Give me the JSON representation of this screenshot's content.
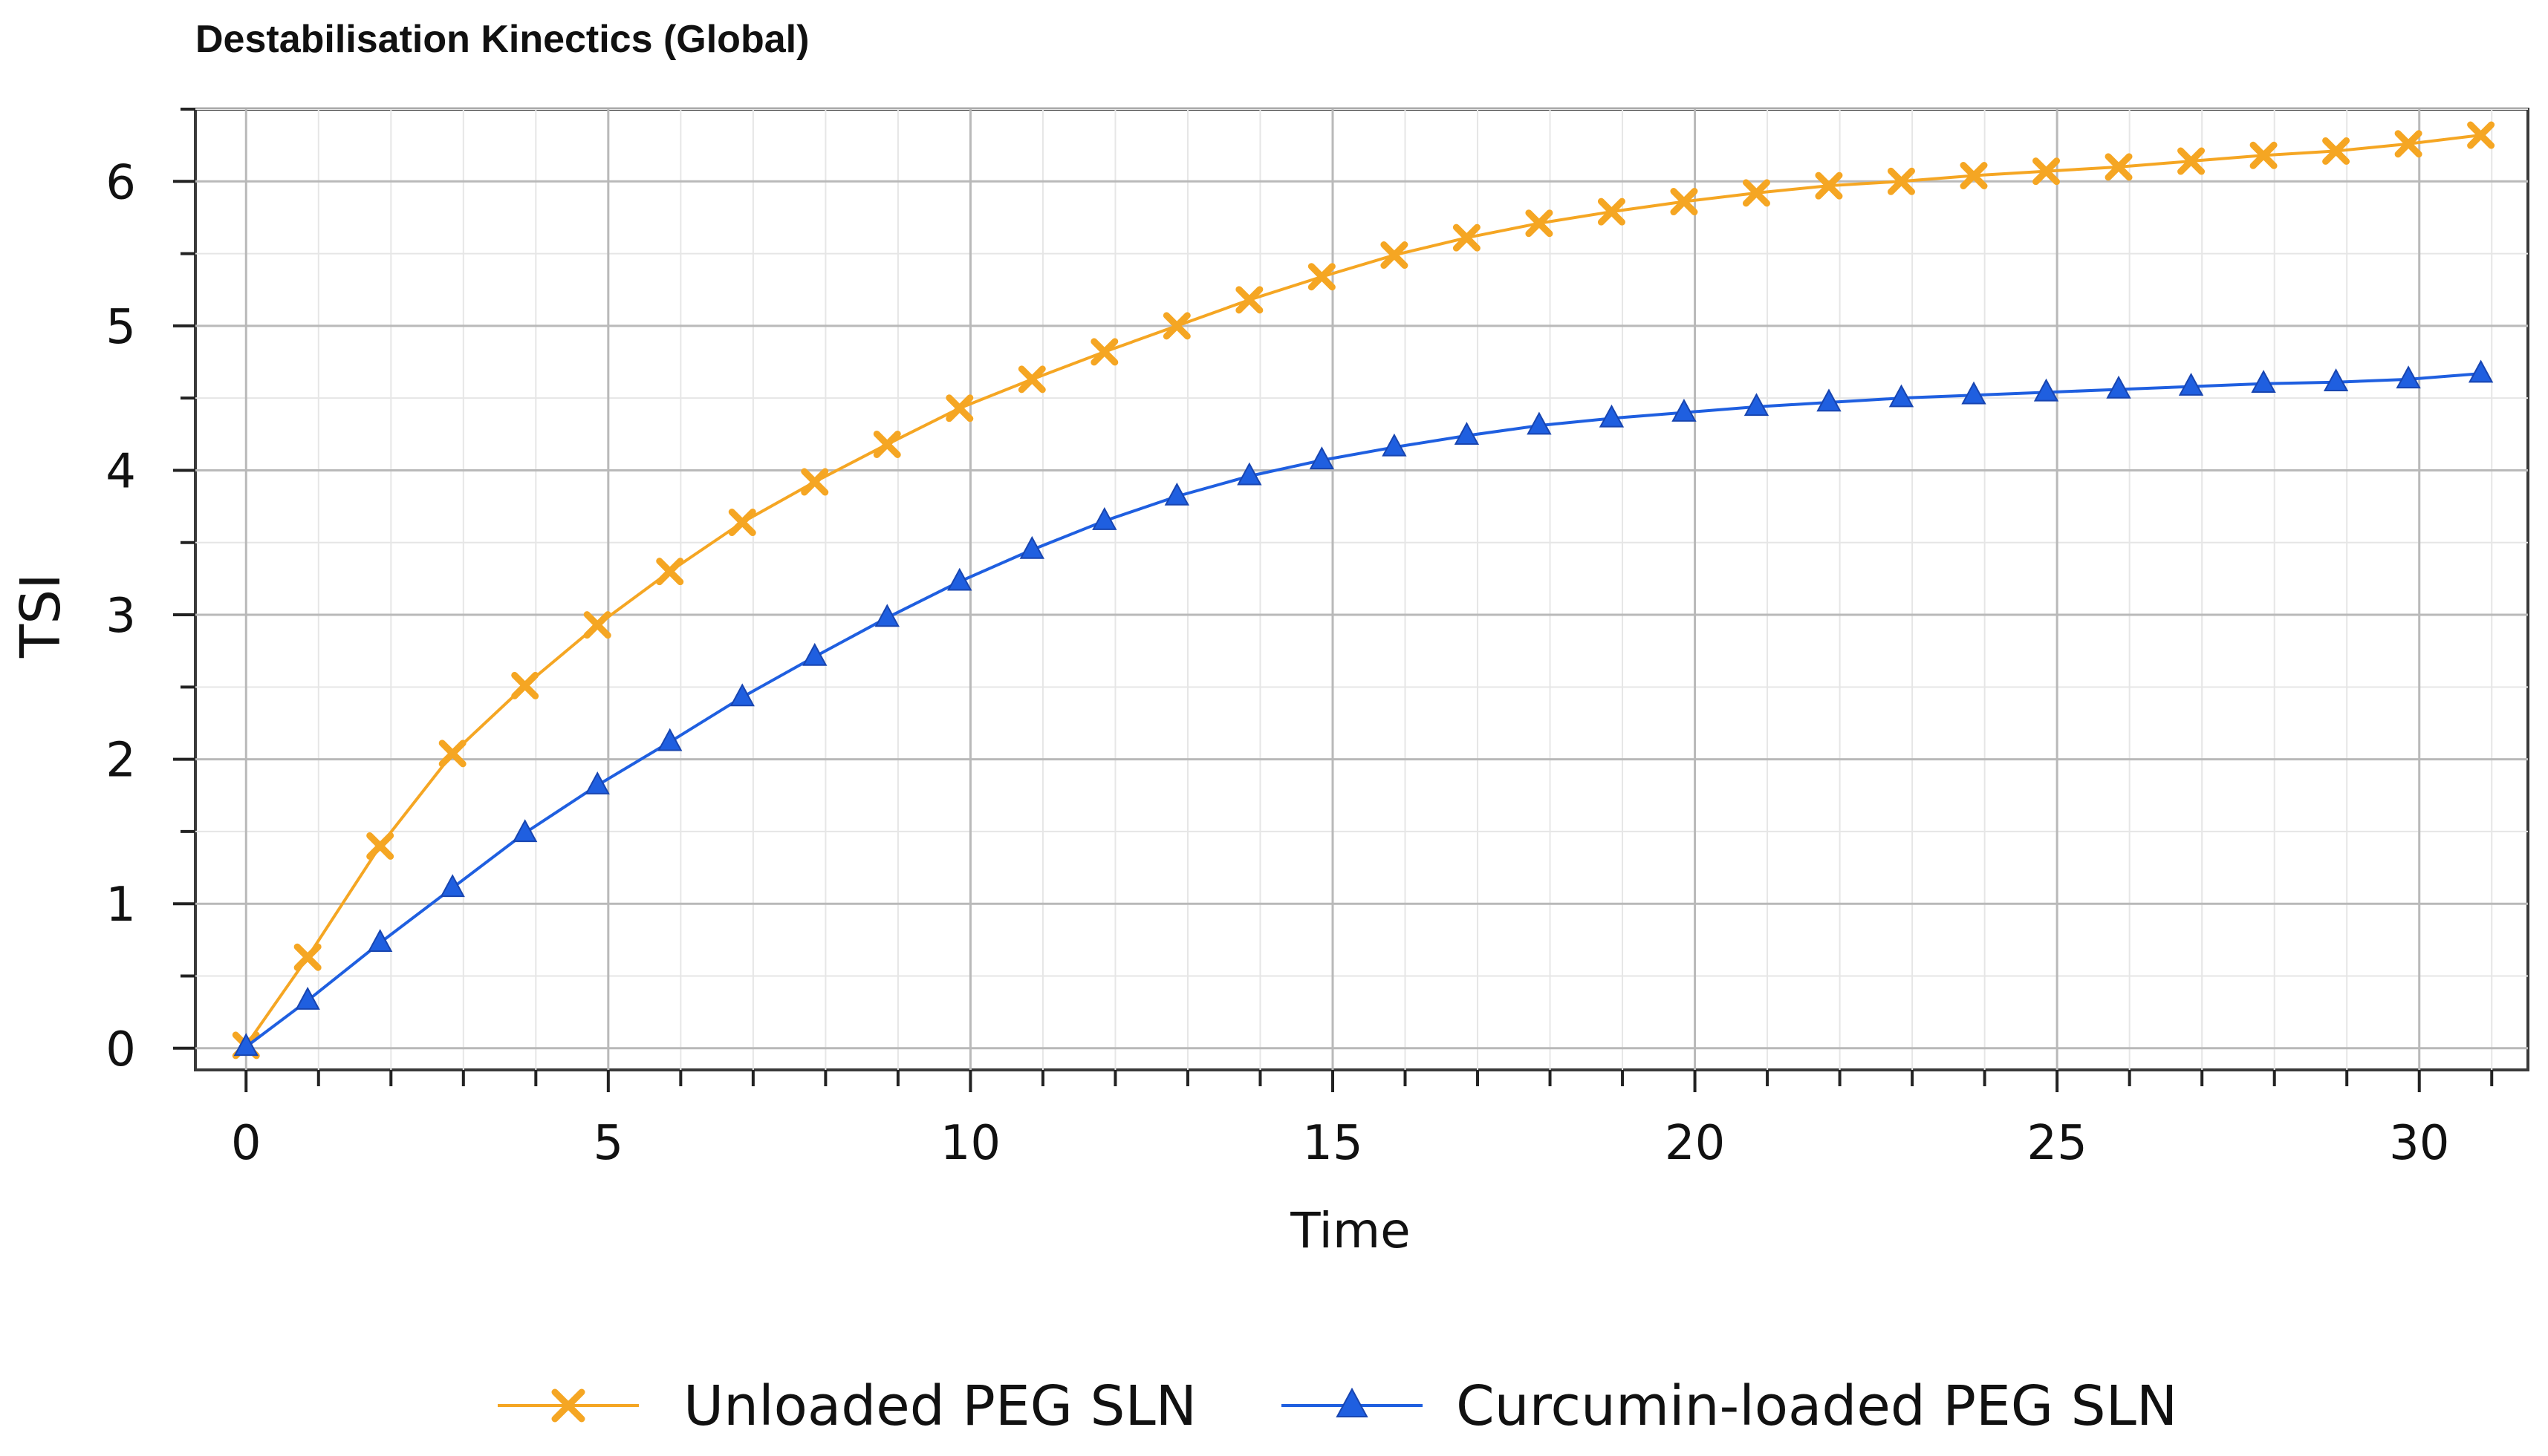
{
  "chart_data": {
    "type": "line",
    "title": "Destabilisation Kinectics (Global)",
    "xlabel": "Time",
    "ylabel": "TSI",
    "xlim": [
      -0.7,
      31.5
    ],
    "ylim": [
      -0.15,
      6.5
    ],
    "x_ticks": [
      0,
      5,
      10,
      15,
      20,
      25,
      30
    ],
    "y_ticks": [
      0,
      1,
      2,
      3,
      4,
      5,
      6
    ],
    "x_minor_step": 1,
    "y_minor_step": 0.5,
    "grid": true,
    "legend_position": "bottom-center",
    "x": [
      0,
      0.85,
      1.85,
      2.85,
      3.85,
      4.85,
      5.85,
      6.85,
      7.85,
      8.85,
      9.85,
      10.85,
      11.85,
      12.85,
      13.85,
      14.85,
      15.85,
      16.85,
      17.85,
      18.85,
      19.85,
      20.85,
      21.85,
      22.85,
      23.85,
      24.85,
      25.85,
      26.85,
      27.85,
      28.85,
      29.85,
      30.85
    ],
    "series": [
      {
        "name": "Unloaded PEG SLN",
        "color": "#f5a623",
        "marker": "x",
        "values": [
          0.02,
          0.63,
          1.4,
          2.04,
          2.51,
          2.93,
          3.3,
          3.64,
          3.92,
          4.18,
          4.43,
          4.63,
          4.82,
          5.0,
          5.18,
          5.34,
          5.49,
          5.61,
          5.71,
          5.79,
          5.86,
          5.92,
          5.97,
          6.0,
          6.04,
          6.07,
          6.1,
          6.14,
          6.18,
          6.21,
          6.26,
          6.32
        ]
      },
      {
        "name": "Curcumin-loaded PEG SLN",
        "color": "#1f5fe0",
        "marker": "triangle",
        "values": [
          0.01,
          0.33,
          0.73,
          1.11,
          1.49,
          1.82,
          2.12,
          2.43,
          2.71,
          2.98,
          3.23,
          3.45,
          3.65,
          3.82,
          3.96,
          4.07,
          4.16,
          4.24,
          4.31,
          4.36,
          4.4,
          4.44,
          4.47,
          4.5,
          4.52,
          4.54,
          4.56,
          4.58,
          4.6,
          4.61,
          4.63,
          4.67
        ]
      }
    ]
  }
}
